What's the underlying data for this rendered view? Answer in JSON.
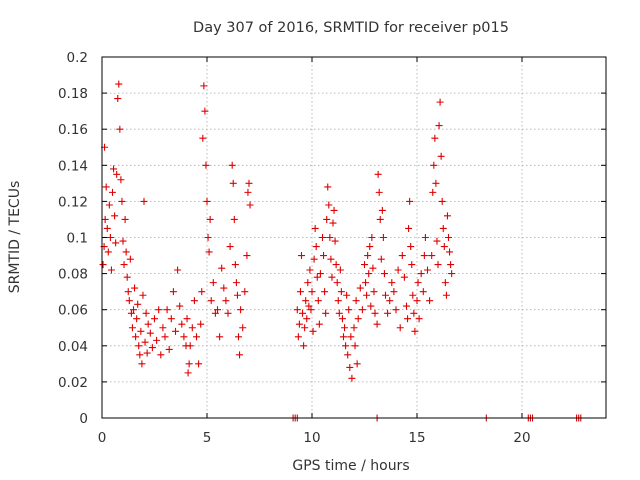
{
  "chart_data": {
    "type": "scatter",
    "title": "Day 307 of 2016, SRMTID for receiver p015",
    "xlabel": "GPS time / hours",
    "ylabel": "SRMTID / TECUs",
    "xlim": [
      0,
      24
    ],
    "ylim": [
      0,
      0.2
    ],
    "xticks": [
      "0",
      "5",
      "10",
      "15",
      "20"
    ],
    "yticks": [
      "0",
      "0.02",
      "0.04",
      "0.06",
      "0.08",
      "0.1",
      "0.12",
      "0.14",
      "0.16",
      "0.18",
      "0.2"
    ],
    "grid": true,
    "marker": "plus",
    "color": "#e00000",
    "series": [
      {
        "points": [
          [
            0.05,
            0.085
          ],
          [
            0.1,
            0.095
          ],
          [
            0.12,
            0.15
          ],
          [
            0.15,
            0.11
          ],
          [
            0.2,
            0.128
          ],
          [
            0.25,
            0.105
          ],
          [
            0.3,
            0.092
          ],
          [
            0.35,
            0.118
          ],
          [
            0.4,
            0.1
          ],
          [
            0.45,
            0.082
          ],
          [
            0.5,
            0.125
          ],
          [
            0.55,
            0.138
          ],
          [
            0.6,
            0.112
          ],
          [
            0.65,
            0.097
          ],
          [
            0.7,
            0.135
          ],
          [
            0.75,
            0.177
          ],
          [
            0.8,
            0.185
          ],
          [
            0.85,
            0.16
          ],
          [
            0.9,
            0.132
          ],
          [
            0.95,
            0.12
          ],
          [
            1.0,
            0.098
          ],
          [
            1.05,
            0.085
          ],
          [
            1.1,
            0.11
          ],
          [
            1.15,
            0.092
          ],
          [
            1.2,
            0.078
          ],
          [
            1.25,
            0.07
          ],
          [
            1.3,
            0.065
          ],
          [
            1.35,
            0.088
          ],
          [
            1.4,
            0.058
          ],
          [
            1.45,
            0.05
          ],
          [
            1.5,
            0.06
          ],
          [
            1.55,
            0.072
          ],
          [
            1.6,
            0.045
          ],
          [
            1.65,
            0.055
          ],
          [
            1.7,
            0.063
          ],
          [
            1.75,
            0.04
          ],
          [
            1.8,
            0.035
          ],
          [
            1.85,
            0.048
          ],
          [
            1.9,
            0.03
          ],
          [
            1.95,
            0.068
          ],
          [
            2.0,
            0.12
          ],
          [
            2.05,
            0.042
          ],
          [
            2.1,
            0.058
          ],
          [
            2.15,
            0.036
          ],
          [
            2.2,
            0.052
          ],
          [
            2.3,
            0.047
          ],
          [
            2.4,
            0.039
          ],
          [
            2.5,
            0.055
          ],
          [
            2.6,
            0.043
          ],
          [
            2.7,
            0.06
          ],
          [
            2.8,
            0.035
          ],
          [
            2.9,
            0.05
          ],
          [
            3.0,
            0.045
          ],
          [
            3.1,
            0.06
          ],
          [
            3.2,
            0.038
          ],
          [
            3.3,
            0.055
          ],
          [
            3.4,
            0.07
          ],
          [
            3.5,
            0.048
          ],
          [
            3.6,
            0.082
          ],
          [
            3.7,
            0.062
          ],
          [
            3.8,
            0.052
          ],
          [
            3.9,
            0.045
          ],
          [
            4.0,
            0.04
          ],
          [
            4.05,
            0.055
          ],
          [
            4.1,
            0.025
          ],
          [
            4.15,
            0.03
          ],
          [
            4.2,
            0.04
          ],
          [
            4.3,
            0.05
          ],
          [
            4.4,
            0.065
          ],
          [
            4.5,
            0.045
          ],
          [
            4.6,
            0.03
          ],
          [
            4.7,
            0.052
          ],
          [
            4.75,
            0.07
          ],
          [
            4.8,
            0.155
          ],
          [
            4.85,
            0.184
          ],
          [
            4.9,
            0.17
          ],
          [
            4.95,
            0.14
          ],
          [
            5.0,
            0.12
          ],
          [
            5.05,
            0.1
          ],
          [
            5.1,
            0.092
          ],
          [
            5.15,
            0.11
          ],
          [
            5.2,
            0.065
          ],
          [
            5.3,
            0.075
          ],
          [
            5.4,
            0.058
          ],
          [
            5.5,
            0.06
          ],
          [
            5.6,
            0.045
          ],
          [
            5.7,
            0.083
          ],
          [
            5.8,
            0.072
          ],
          [
            5.9,
            0.065
          ],
          [
            6.0,
            0.058
          ],
          [
            6.1,
            0.095
          ],
          [
            6.2,
            0.14
          ],
          [
            6.25,
            0.13
          ],
          [
            6.3,
            0.11
          ],
          [
            6.35,
            0.085
          ],
          [
            6.4,
            0.075
          ],
          [
            6.45,
            0.068
          ],
          [
            6.5,
            0.045
          ],
          [
            6.55,
            0.035
          ],
          [
            6.6,
            0.06
          ],
          [
            6.7,
            0.05
          ],
          [
            6.8,
            0.07
          ],
          [
            6.9,
            0.09
          ],
          [
            6.95,
            0.125
          ],
          [
            7.0,
            0.13
          ],
          [
            7.05,
            0.118
          ],
          [
            9.3,
            0.06
          ],
          [
            9.35,
            0.045
          ],
          [
            9.4,
            0.052
          ],
          [
            9.45,
            0.07
          ],
          [
            9.5,
            0.09
          ],
          [
            9.55,
            0.058
          ],
          [
            9.6,
            0.04
          ],
          [
            9.65,
            0.05
          ],
          [
            9.7,
            0.065
          ],
          [
            9.75,
            0.055
          ],
          [
            9.8,
            0.075
          ],
          [
            9.85,
            0.062
          ],
          [
            9.9,
            0.082
          ],
          [
            9.95,
            0.06
          ],
          [
            10.0,
            0.07
          ],
          [
            10.05,
            0.048
          ],
          [
            10.1,
            0.088
          ],
          [
            10.15,
            0.105
          ],
          [
            10.2,
            0.095
          ],
          [
            10.25,
            0.078
          ],
          [
            10.3,
            0.065
          ],
          [
            10.35,
            0.052
          ],
          [
            10.4,
            0.08
          ],
          [
            10.5,
            0.1
          ],
          [
            10.55,
            0.09
          ],
          [
            10.6,
            0.07
          ],
          [
            10.65,
            0.058
          ],
          [
            10.7,
            0.11
          ],
          [
            10.75,
            0.128
          ],
          [
            10.8,
            0.118
          ],
          [
            10.85,
            0.1
          ],
          [
            10.9,
            0.088
          ],
          [
            10.95,
            0.078
          ],
          [
            11.0,
            0.108
          ],
          [
            11.05,
            0.115
          ],
          [
            11.1,
            0.098
          ],
          [
            11.15,
            0.085
          ],
          [
            11.2,
            0.075
          ],
          [
            11.25,
            0.065
          ],
          [
            11.3,
            0.058
          ],
          [
            11.35,
            0.082
          ],
          [
            11.4,
            0.07
          ],
          [
            11.45,
            0.055
          ],
          [
            11.5,
            0.045
          ],
          [
            11.55,
            0.05
          ],
          [
            11.6,
            0.04
          ],
          [
            11.65,
            0.068
          ],
          [
            11.7,
            0.035
          ],
          [
            11.75,
            0.06
          ],
          [
            11.8,
            0.028
          ],
          [
            11.85,
            0.045
          ],
          [
            11.9,
            0.022
          ],
          [
            12.0,
            0.05
          ],
          [
            12.05,
            0.04
          ],
          [
            12.1,
            0.065
          ],
          [
            12.15,
            0.03
          ],
          [
            12.2,
            0.055
          ],
          [
            12.3,
            0.072
          ],
          [
            12.4,
            0.06
          ],
          [
            12.5,
            0.085
          ],
          [
            12.55,
            0.075
          ],
          [
            12.6,
            0.068
          ],
          [
            12.65,
            0.09
          ],
          [
            12.7,
            0.08
          ],
          [
            12.75,
            0.095
          ],
          [
            12.8,
            0.062
          ],
          [
            12.85,
            0.1
          ],
          [
            12.9,
            0.083
          ],
          [
            12.95,
            0.07
          ],
          [
            13.0,
            0.058
          ],
          [
            13.1,
            0.052
          ],
          [
            13.15,
            0.135
          ],
          [
            13.2,
            0.125
          ],
          [
            13.25,
            0.11
          ],
          [
            13.3,
            0.088
          ],
          [
            13.35,
            0.115
          ],
          [
            13.4,
            0.1
          ],
          [
            13.45,
            0.08
          ],
          [
            13.5,
            0.068
          ],
          [
            13.6,
            0.058
          ],
          [
            13.7,
            0.065
          ],
          [
            13.8,
            0.075
          ],
          [
            13.9,
            0.07
          ],
          [
            14.0,
            0.06
          ],
          [
            14.1,
            0.082
          ],
          [
            14.2,
            0.05
          ],
          [
            14.3,
            0.09
          ],
          [
            14.4,
            0.078
          ],
          [
            14.5,
            0.062
          ],
          [
            14.55,
            0.055
          ],
          [
            14.6,
            0.105
          ],
          [
            14.65,
            0.12
          ],
          [
            14.7,
            0.095
          ],
          [
            14.75,
            0.085
          ],
          [
            14.8,
            0.068
          ],
          [
            14.85,
            0.058
          ],
          [
            14.9,
            0.048
          ],
          [
            15.0,
            0.065
          ],
          [
            15.05,
            0.075
          ],
          [
            15.1,
            0.055
          ],
          [
            15.2,
            0.08
          ],
          [
            15.3,
            0.07
          ],
          [
            15.35,
            0.09
          ],
          [
            15.4,
            0.1
          ],
          [
            15.5,
            0.082
          ],
          [
            15.6,
            0.065
          ],
          [
            15.7,
            0.09
          ],
          [
            15.75,
            0.125
          ],
          [
            15.8,
            0.14
          ],
          [
            15.85,
            0.155
          ],
          [
            15.9,
            0.13
          ],
          [
            15.95,
            0.098
          ],
          [
            16.0,
            0.085
          ],
          [
            16.05,
            0.162
          ],
          [
            16.1,
            0.175
          ],
          [
            16.15,
            0.145
          ],
          [
            16.2,
            0.12
          ],
          [
            16.25,
            0.105
          ],
          [
            16.3,
            0.095
          ],
          [
            16.35,
            0.075
          ],
          [
            16.4,
            0.068
          ],
          [
            16.45,
            0.112
          ],
          [
            16.5,
            0.1
          ],
          [
            16.55,
            0.092
          ],
          [
            16.6,
            0.085
          ],
          [
            16.65,
            0.08
          ],
          [
            9.1,
            0.0
          ],
          [
            9.2,
            0.0
          ],
          [
            9.3,
            0.0
          ],
          [
            13.1,
            0.0
          ],
          [
            18.3,
            0.0
          ],
          [
            20.3,
            0.0
          ],
          [
            20.4,
            0.0
          ],
          [
            20.5,
            0.0
          ],
          [
            22.6,
            0.0
          ],
          [
            22.7,
            0.0
          ],
          [
            22.8,
            0.0
          ]
        ]
      }
    ]
  }
}
